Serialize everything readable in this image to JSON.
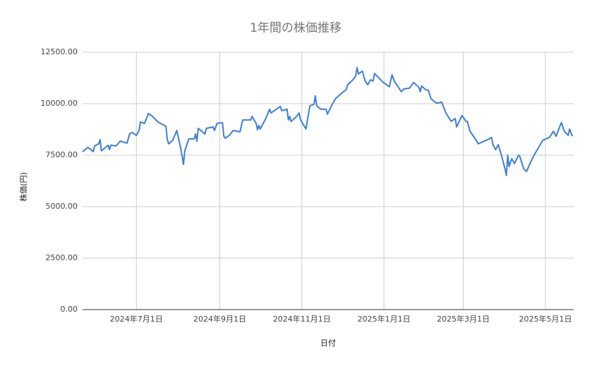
{
  "chart_data": {
    "type": "line",
    "title": "1年間の株価推移",
    "x_label": "日付",
    "y_label": "株価(円)",
    "color": "#3d7fd6",
    "grid": true,
    "xlim": [
      "2024-05-22",
      "2025-05-22"
    ],
    "xticks": [
      {
        "value": "2024-07-01",
        "label": "2024年7月1日"
      },
      {
        "value": "2024-09-01",
        "label": "2024年9月1日"
      },
      {
        "value": "2024-11-01",
        "label": "2024年11月1日"
      },
      {
        "value": "2025-01-01",
        "label": "2025年1月1日"
      },
      {
        "value": "2025-03-01",
        "label": "2025年3月1日"
      },
      {
        "value": "2025-05-01",
        "label": "2025年5月1日"
      }
    ],
    "ylim": [
      0,
      12500
    ],
    "yticks": [
      {
        "value": 0,
        "label": "0.00"
      },
      {
        "value": 2500,
        "label": "2500.00"
      },
      {
        "value": 5000,
        "label": "5000.00"
      },
      {
        "value": 7500,
        "label": "7500.00"
      },
      {
        "value": 10000,
        "label": "10000.00"
      },
      {
        "value": 12500,
        "label": "12500.00"
      }
    ],
    "x": [
      "2024-05-22",
      "2024-05-26",
      "2024-05-30",
      "2024-05-31",
      "2024-06-03",
      "2024-06-04",
      "2024-06-05",
      "2024-06-10",
      "2024-06-11",
      "2024-06-12",
      "2024-06-16",
      "2024-06-19",
      "2024-06-24",
      "2024-06-26",
      "2024-06-28",
      "2024-07-01",
      "2024-07-03",
      "2024-07-04",
      "2024-07-07",
      "2024-07-10",
      "2024-07-13",
      "2024-07-17",
      "2024-07-23",
      "2024-07-24",
      "2024-07-25",
      "2024-07-28",
      "2024-07-31",
      "2024-08-03",
      "2024-08-05",
      "2024-08-06",
      "2024-08-09",
      "2024-08-13",
      "2024-08-14",
      "2024-08-15",
      "2024-08-16",
      "2024-08-21",
      "2024-08-22",
      "2024-08-27",
      "2024-08-28",
      "2024-08-30",
      "2024-09-03",
      "2024-09-04",
      "2024-09-05",
      "2024-09-08",
      "2024-09-11",
      "2024-09-16",
      "2024-09-18",
      "2024-09-24",
      "2024-09-25",
      "2024-09-28",
      "2024-09-29",
      "2024-09-30",
      "2024-10-01",
      "2024-10-05",
      "2024-10-08",
      "2024-10-09",
      "2024-10-16",
      "2024-10-17",
      "2024-10-21",
      "2024-10-22",
      "2024-10-23",
      "2024-10-24",
      "2024-10-28",
      "2024-10-30",
      "2024-10-31",
      "2024-11-04",
      "2024-11-07",
      "2024-11-10",
      "2024-11-11",
      "2024-11-12",
      "2024-11-15",
      "2024-11-19",
      "2024-11-20",
      "2024-11-23",
      "2024-11-26",
      "2024-11-30",
      "2024-12-04",
      "2024-12-05",
      "2024-12-09",
      "2024-12-11",
      "2024-12-12",
      "2024-12-13",
      "2024-12-16",
      "2024-12-18",
      "2024-12-20",
      "2024-12-22",
      "2024-12-24",
      "2024-12-25",
      "2024-12-31",
      "2025-01-05",
      "2025-01-07",
      "2025-01-09",
      "2025-01-14",
      "2025-01-16",
      "2025-01-20",
      "2025-01-23",
      "2025-01-27",
      "2025-01-28",
      "2025-01-29",
      "2025-02-01",
      "2025-02-03",
      "2025-02-05",
      "2025-02-09",
      "2025-02-13",
      "2025-02-16",
      "2025-02-20",
      "2025-02-23",
      "2025-02-24",
      "2025-02-28",
      "2025-03-03",
      "2025-03-04",
      "2025-03-06",
      "2025-03-11",
      "2025-03-12",
      "2025-03-19",
      "2025-03-22",
      "2025-03-23",
      "2025-03-25",
      "2025-03-27",
      "2025-03-30",
      "2025-04-01",
      "2025-04-02",
      "2025-04-03",
      "2025-04-04",
      "2025-04-06",
      "2025-04-08",
      "2025-04-11",
      "2025-04-12",
      "2025-04-15",
      "2025-04-17",
      "2025-04-20",
      "2025-04-22",
      "2025-04-25",
      "2025-04-29",
      "2025-05-04",
      "2025-05-07",
      "2025-05-09",
      "2025-05-12",
      "2025-05-13",
      "2025-05-15",
      "2025-05-18",
      "2025-05-19",
      "2025-05-21"
    ],
    "values": [
      7670,
      7880,
      7670,
      7950,
      8050,
      8250,
      7710,
      7980,
      7770,
      7980,
      7950,
      8180,
      8080,
      8530,
      8600,
      8460,
      8700,
      9110,
      9040,
      9520,
      9380,
      9110,
      8900,
      8250,
      8050,
      8220,
      8700,
      7840,
      7050,
      7710,
      8290,
      8290,
      8530,
      8180,
      8800,
      8530,
      8800,
      8870,
      8700,
      9040,
      9080,
      8420,
      8320,
      8460,
      8700,
      8630,
      9210,
      9210,
      9380,
      9040,
      8730,
      8940,
      8770,
      9250,
      9730,
      9550,
      9860,
      9660,
      9730,
      9210,
      9380,
      9140,
      9380,
      9550,
      9210,
      8770,
      9900,
      9970,
      10380,
      9900,
      9730,
      9730,
      9490,
      9900,
      10240,
      10480,
      10680,
      10920,
      11160,
      11340,
      11750,
      11440,
      11580,
      11100,
      10920,
      11160,
      11100,
      11470,
      11060,
      10820,
      11400,
      11060,
      10580,
      10720,
      10750,
      11030,
      10790,
      10580,
      10860,
      10680,
      10650,
      10240,
      10030,
      10070,
      9550,
      9140,
      9280,
      8870,
      9420,
      9140,
      9140,
      8660,
      8180,
      8050,
      8250,
      8360,
      8010,
      7770,
      8010,
      7330,
      6820,
      6510,
      7500,
      6950,
      7330,
      7090,
      7500,
      7430,
      6820,
      6710,
      7160,
      7430,
      7770,
      8220,
      8360,
      8660,
      8420,
      8940,
      9080,
      8660,
      8460,
      8770,
      8420
    ]
  }
}
